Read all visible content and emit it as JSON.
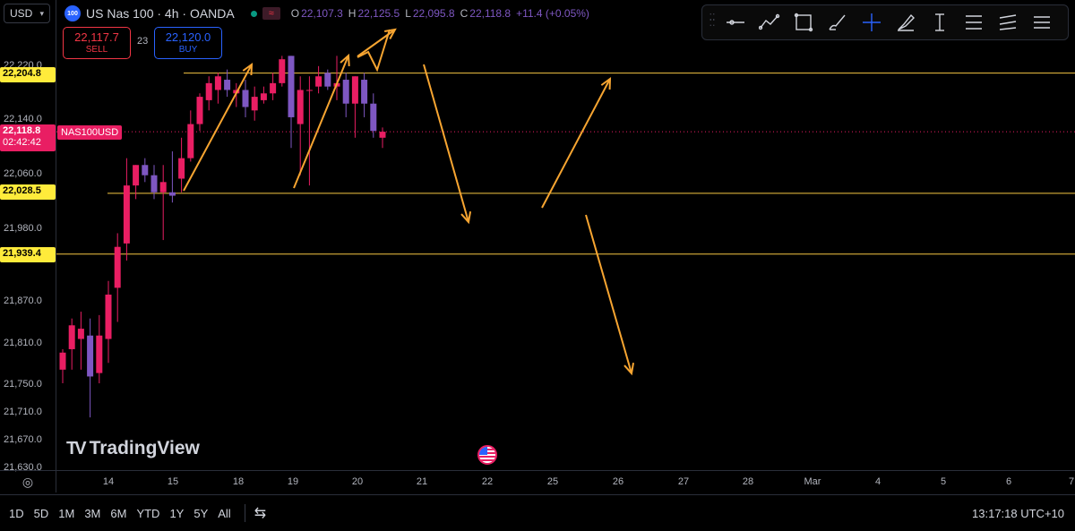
{
  "currency": "USD",
  "symbol": {
    "logo_text": "100",
    "title": "US Nas 100 · 4h · OANDA",
    "ohlc": {
      "o_label": "O",
      "o": "22,107.3",
      "h_label": "H",
      "h": "22,125.5",
      "l_label": "L",
      "l": "22,095.8",
      "c_label": "C",
      "c": "22,118.8",
      "change": "+11.4 (+0.05%)"
    }
  },
  "trade": {
    "sell_price": "22,117.7",
    "sell_label": "SELL",
    "spread": "23",
    "buy_price": "22,120.0",
    "buy_label": "BUY"
  },
  "price_axis": {
    "ticks": [
      "22,220.0",
      "22,140.0",
      "22,060.0",
      "21,980.0",
      "21,870.0",
      "21,810.0",
      "21,750.0",
      "21,710.0",
      "21,670.0",
      "21,630.0"
    ],
    "level_labels": [
      "22,204.8",
      "22,028.5",
      "21,939.4"
    ],
    "current_price": "22,118.8",
    "countdown": "02:42:42",
    "symbol_tag": "NAS100USD"
  },
  "time_axis": [
    "14",
    "15",
    "18",
    "19",
    "20",
    "21",
    "22",
    "25",
    "26",
    "27",
    "28",
    "Mar",
    "4",
    "5",
    "6",
    "7"
  ],
  "toolbar_icons": [
    "grip-icon",
    "horizontal-line-icon",
    "trend-line-icon",
    "rectangle-icon",
    "brush-icon",
    "crosshair-icon",
    "highlighter-icon",
    "vertical-measure-icon",
    "fib-retracement-icon",
    "parallel-channel-icon",
    "menu-icon"
  ],
  "branding": "TradingView",
  "range_buttons": [
    "1D",
    "5D",
    "1M",
    "3M",
    "6M",
    "YTD",
    "1Y",
    "5Y",
    "All"
  ],
  "clock": "13:17:18 UTC+10",
  "colors": {
    "bull": "#e91e63",
    "bear": "#7e57c2",
    "level_line": "#f5c542",
    "arrow": "#f7a531",
    "price_tag": "#e91e63"
  },
  "chart_data": {
    "type": "candlestick",
    "title": "US Nas 100 · 4h · OANDA",
    "ylim": [
      21630,
      22240
    ],
    "horizontal_levels": [
      22204.8,
      22028.5,
      21939.4
    ],
    "current_price": 22118.8,
    "candles": [
      {
        "o": 21770,
        "h": 21800,
        "l": 21750,
        "c": 21795
      },
      {
        "o": 21800,
        "h": 21845,
        "l": 21770,
        "c": 21835
      },
      {
        "o": 21815,
        "h": 21855,
        "l": 21770,
        "c": 21830
      },
      {
        "o": 21820,
        "h": 21845,
        "l": 21700,
        "c": 21760
      },
      {
        "o": 21765,
        "h": 21850,
        "l": 21750,
        "c": 21820
      },
      {
        "o": 21815,
        "h": 21900,
        "l": 21780,
        "c": 21880
      },
      {
        "o": 21890,
        "h": 21970,
        "l": 21840,
        "c": 21950
      },
      {
        "o": 21955,
        "h": 22080,
        "l": 21930,
        "c": 22040
      },
      {
        "o": 22040,
        "h": 22070,
        "l": 22020,
        "c": 22070
      },
      {
        "o": 22070,
        "h": 22080,
        "l": 22045,
        "c": 22055
      },
      {
        "o": 22055,
        "h": 22070,
        "l": 22020,
        "c": 22030
      },
      {
        "o": 22030,
        "h": 22070,
        "l": 21960,
        "c": 22045
      },
      {
        "o": 22030,
        "h": 22090,
        "l": 22015,
        "c": 22025
      },
      {
        "o": 22050,
        "h": 22110,
        "l": 22030,
        "c": 22080
      },
      {
        "o": 22080,
        "h": 22150,
        "l": 22075,
        "c": 22130
      },
      {
        "o": 22130,
        "h": 22175,
        "l": 22120,
        "c": 22170
      },
      {
        "o": 22165,
        "h": 22200,
        "l": 22150,
        "c": 22190
      },
      {
        "o": 22180,
        "h": 22205,
        "l": 22160,
        "c": 22200
      },
      {
        "o": 22195,
        "h": 22210,
        "l": 22170,
        "c": 22180
      },
      {
        "o": 22175,
        "h": 22190,
        "l": 22155,
        "c": 22180
      },
      {
        "o": 22180,
        "h": 22195,
        "l": 22140,
        "c": 22155
      },
      {
        "o": 22150,
        "h": 22185,
        "l": 22135,
        "c": 22170
      },
      {
        "o": 22165,
        "h": 22185,
        "l": 22160,
        "c": 22175
      },
      {
        "o": 22175,
        "h": 22205,
        "l": 22165,
        "c": 22190
      },
      {
        "o": 22190,
        "h": 22230,
        "l": 22185,
        "c": 22225
      },
      {
        "o": 22230,
        "h": 22230,
        "l": 22095,
        "c": 22140
      },
      {
        "o": 22130,
        "h": 22200,
        "l": 22055,
        "c": 22180
      },
      {
        "o": 22180,
        "h": 22200,
        "l": 22040,
        "c": 22180
      },
      {
        "o": 22185,
        "h": 22215,
        "l": 22175,
        "c": 22200
      },
      {
        "o": 22205,
        "h": 22210,
        "l": 22180,
        "c": 22185
      },
      {
        "o": 22185,
        "h": 22230,
        "l": 22165,
        "c": 22190
      },
      {
        "o": 22195,
        "h": 22205,
        "l": 22140,
        "c": 22160
      },
      {
        "o": 22160,
        "h": 22200,
        "l": 22110,
        "c": 22200
      },
      {
        "o": 22195,
        "h": 22205,
        "l": 22140,
        "c": 22160
      },
      {
        "o": 22160,
        "h": 22175,
        "l": 22110,
        "c": 22120
      },
      {
        "o": 22110,
        "h": 22125,
        "l": 22095,
        "c": 22118.8
      }
    ]
  }
}
